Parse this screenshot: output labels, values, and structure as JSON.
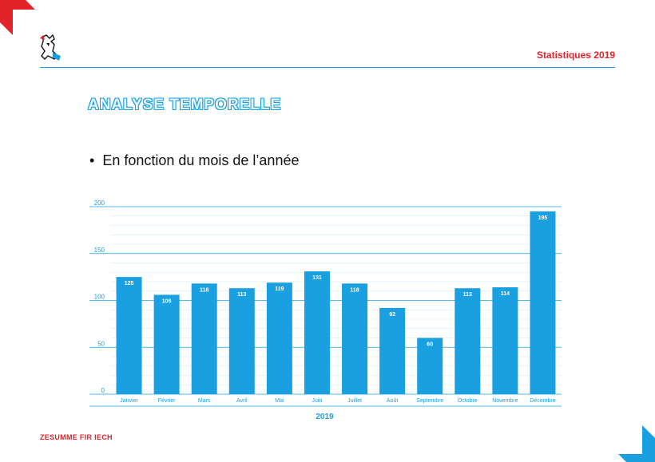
{
  "header": {
    "right_title": "Statistiques 2019"
  },
  "slide": {
    "title": "ANALYSE TEMPORELLE",
    "bullet": "En fonction du mois de l’année"
  },
  "footer": {
    "text": "ZESUMME FIR IECH"
  },
  "colors": {
    "accent": "#1aa0e0",
    "brand_red": "#e2232a",
    "bar": "#1aa0e0"
  },
  "chart_data": {
    "type": "bar",
    "title": "",
    "xlabel": "2019",
    "ylabel": "",
    "ylim": [
      0,
      200
    ],
    "yticks": [
      0,
      50,
      100,
      150,
      200
    ],
    "grid": true,
    "categories": [
      "Janvier",
      "Février",
      "Mars",
      "Avril",
      "Mai",
      "Juin",
      "Juillet",
      "Août",
      "Septembre",
      "Octobre",
      "Novembre",
      "Décembre"
    ],
    "values": [
      125,
      106,
      118,
      113,
      119,
      131,
      118,
      92,
      60,
      113,
      114,
      195
    ]
  }
}
